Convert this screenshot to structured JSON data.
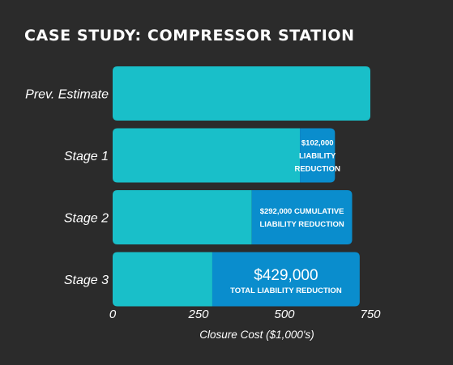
{
  "chart_data": {
    "type": "bar",
    "orientation": "horizontal",
    "stacked": true,
    "title": "CASE STUDY: COMPRESSOR STATION",
    "xlabel": "Closure Cost ($1,000's)",
    "ylabel": "",
    "xlim": [
      0,
      750
    ],
    "xticks": [
      "0",
      "250",
      "500",
      "750"
    ],
    "categories": [
      "Prev. Estimate",
      "Stage 1",
      "Stage 2",
      "Stage 3"
    ],
    "series": [
      {
        "name": "",
        "color": "#19bfc9",
        "values": [
          750,
          545,
          405,
          290
        ]
      },
      {
        "name": "",
        "color": "#0a8dcd",
        "values": [
          0,
          102,
          292,
          429
        ],
        "labels": [
          [],
          [
            "$102,000",
            "LIABILITY",
            "REDUCTION"
          ],
          [
            "$292,000 CUMULATIVE",
            "LIABILITY REDUCTION"
          ],
          [
            "$429,000",
            "TOTAL LIABILITY REDUCTION"
          ]
        ]
      }
    ],
    "grid": false,
    "legend": "none"
  }
}
